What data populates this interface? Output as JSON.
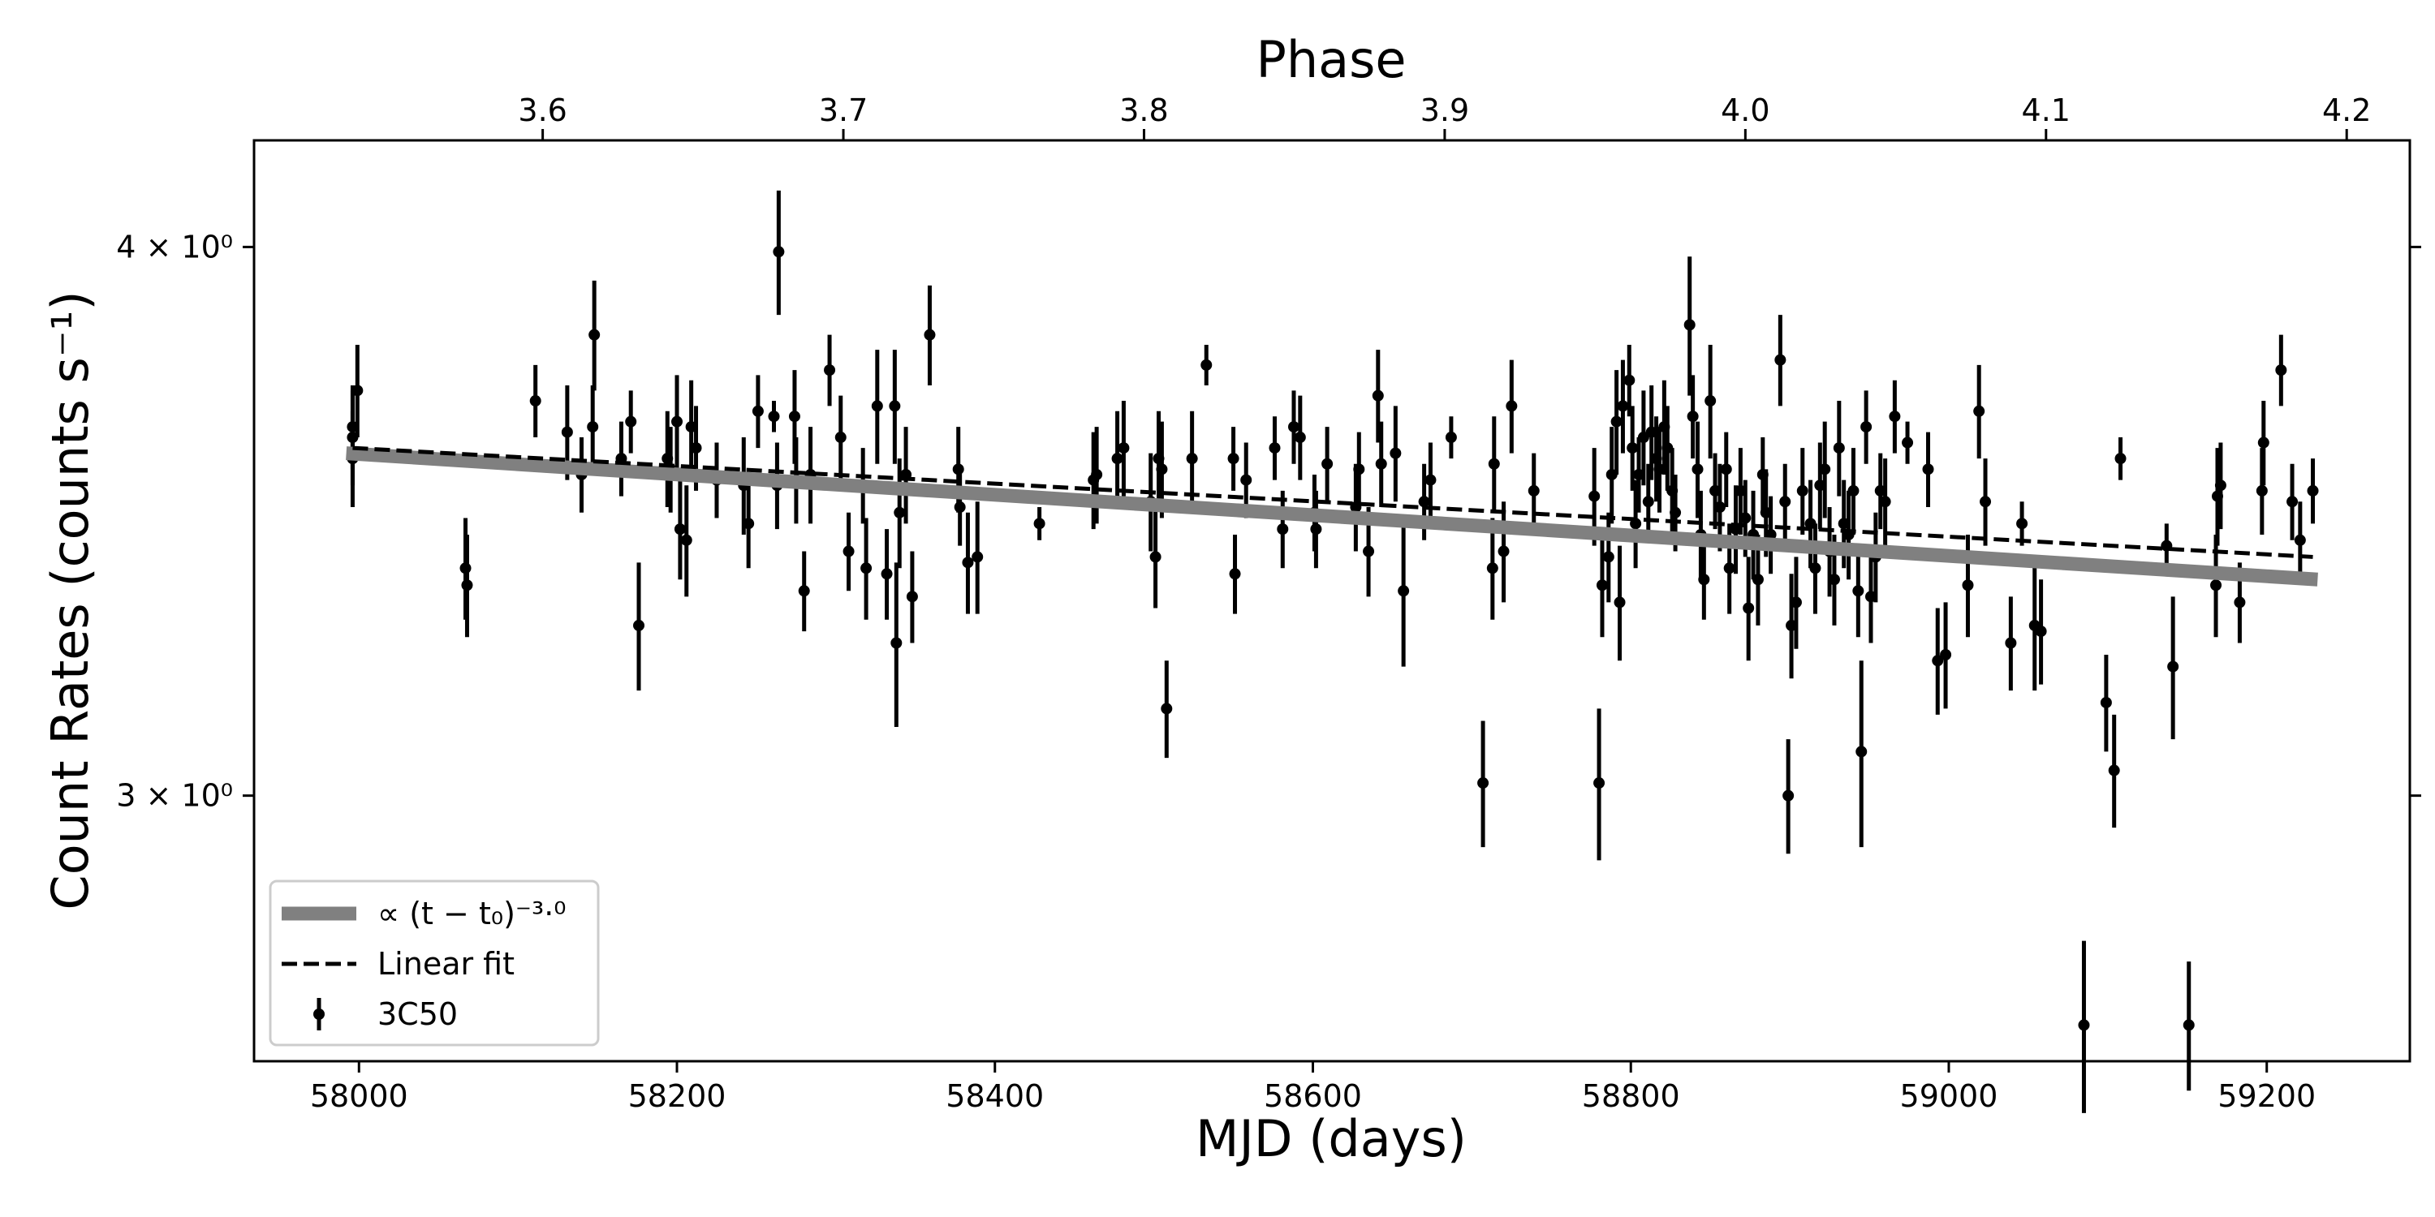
{
  "chart_data": {
    "type": "errorbar",
    "xlabel": "MJD (days)",
    "ylabel": "Count Rates (counts s⁻¹)",
    "x2label": "Phase",
    "xlim": [
      57934,
      59290
    ],
    "xticks": [
      58000,
      58200,
      58400,
      58600,
      58800,
      59000,
      59200
    ],
    "x2lim": [
      3.504,
      4.221
    ],
    "x2ticks": [
      3.6,
      3.7,
      3.8,
      3.9,
      {
        "value": 4,
        "label": "4.0"
      },
      4.1,
      4.2
    ],
    "ylim": [
      2.61,
      4.23
    ],
    "yscale": "log",
    "yticks": [
      {
        "value": 3,
        "label": "3 × 10⁰"
      },
      {
        "value": 4,
        "label": "4 × 10⁰"
      }
    ],
    "legend": "lower left",
    "series": [
      {
        "name": "∝ (t − t₀)⁻³·⁰",
        "type": "line",
        "color": "#808080",
        "x": [
          57992,
          59232
        ],
        "values": [
          3.59,
          3.36
        ]
      },
      {
        "name": "Linear fit",
        "type": "dashed",
        "color": "#000000",
        "x": [
          57996,
          59229
        ],
        "values": [
          3.6,
          3.4
        ]
      },
      {
        "name": "3C50",
        "type": "errorbar",
        "color": "#000000",
        "x": [
          57996,
          57996,
          57996,
          57999,
          58067,
          58068,
          58111,
          58131,
          58140,
          58147,
          58148,
          58165,
          58171,
          58176,
          58194,
          58196,
          58200,
          58202,
          58206,
          58209,
          58212,
          58225,
          58242,
          58245,
          58251,
          58261,
          58264,
          58263,
          58274,
          58275,
          58280,
          58284,
          58296,
          58303,
          58308,
          58317,
          58319,
          58326,
          58332,
          58337,
          58338,
          58340,
          58344,
          58348,
          58359,
          58378,
          58383,
          58389,
          58377,
          58428,
          58462,
          58464,
          58477,
          58481,
          58498,
          58501,
          58503,
          58505,
          58508,
          58524,
          58533,
          58550,
          58551,
          58558,
          58576,
          58581,
          58588,
          58592,
          58601,
          58602,
          58609,
          58627,
          58629,
          58635,
          58641,
          58643,
          58652,
          58657,
          58670,
          58674,
          58687,
          58707,
          58713,
          58714,
          58720,
          58725,
          58739,
          58777,
          58780,
          58782,
          58786,
          58788,
          58791,
          58793,
          58795,
          58799,
          58801,
          58803,
          58805,
          58808,
          58811,
          58813,
          58816,
          58818,
          58821,
          58823,
          58826,
          58828,
          58837,
          58839,
          58842,
          58844,
          58846,
          58850,
          58853,
          58856,
          58860,
          58862,
          58866,
          58869,
          58872,
          58874,
          58877,
          58880,
          58883,
          58885,
          58888,
          58894,
          58897,
          58899,
          58901,
          58904,
          58908,
          58913,
          58916,
          58919,
          58922,
          58925,
          58928,
          58931,
          58934,
          58937,
          58940,
          58943,
          58945,
          58948,
          58951,
          58954,
          58957,
          58960,
          58966,
          58974,
          58987,
          58993,
          58998,
          59012,
          59019,
          59023,
          59039,
          59046,
          59054,
          59058,
          59085,
          59099,
          59104,
          59108,
          59137,
          59141,
          59151,
          59168,
          59169,
          59171,
          59183,
          59197,
          59198,
          59209,
          59216,
          59221,
          59229
        ],
        "values": [
          3.58,
          3.62,
          3.64,
          3.71,
          3.38,
          3.35,
          3.69,
          3.63,
          3.55,
          3.64,
          3.82,
          3.58,
          3.65,
          3.28,
          3.58,
          3.56,
          3.65,
          3.45,
          3.43,
          3.64,
          3.6,
          3.54,
          3.53,
          3.46,
          3.67,
          3.66,
          3.99,
          3.53,
          3.66,
          3.54,
          3.34,
          3.55,
          3.75,
          3.62,
          3.41,
          3.53,
          3.38,
          3.68,
          3.37,
          3.68,
          3.25,
          3.48,
          3.55,
          3.33,
          3.82,
          3.49,
          3.39,
          3.4,
          3.56,
          3.46,
          3.54,
          3.55,
          3.58,
          3.6,
          3.5,
          3.4,
          3.58,
          3.56,
          3.14,
          3.58,
          3.76,
          3.58,
          3.37,
          3.54,
          3.6,
          3.45,
          3.64,
          3.62,
          3.48,
          3.45,
          3.57,
          3.49,
          3.56,
          3.41,
          3.7,
          3.57,
          3.59,
          3.34,
          3.5,
          3.54,
          3.62,
          3.02,
          3.38,
          3.57,
          3.41,
          3.68,
          3.52,
          3.51,
          3.02,
          3.35,
          3.4,
          3.55,
          3.65,
          3.32,
          3.68,
          3.73,
          3.6,
          3.46,
          3.55,
          3.62,
          3.5,
          3.63,
          3.58,
          3.56,
          3.64,
          3.6,
          3.52,
          3.48,
          3.84,
          3.66,
          3.56,
          3.44,
          3.36,
          3.69,
          3.52,
          3.49,
          3.56,
          3.38,
          3.45,
          3.52,
          3.47,
          3.31,
          3.44,
          3.36,
          3.55,
          3.48,
          3.44,
          3.77,
          3.5,
          3.0,
          3.28,
          3.32,
          3.52,
          3.46,
          3.38,
          3.53,
          3.56,
          3.41,
          3.36,
          3.6,
          3.46,
          3.44,
          3.52,
          3.34,
          3.07,
          3.64,
          3.33,
          3.4,
          3.52,
          3.5,
          3.66,
          3.61,
          3.56,
          3.22,
          3.23,
          3.35,
          3.67,
          3.5,
          3.25,
          3.46,
          3.28,
          3.27,
          2.66,
          3.15,
          3.04,
          3.58,
          3.42,
          3.21,
          2.66,
          3.35,
          3.51,
          3.53,
          3.32,
          3.52,
          3.61,
          3.75,
          3.5,
          3.43,
          3.52
        ],
        "errors": [
          0.09,
          0.09,
          0.08,
          0.09,
          0.09,
          0.09,
          0.07,
          0.09,
          0.07,
          0.08,
          0.11,
          0.07,
          0.06,
          0.11,
          0.09,
          0.08,
          0.09,
          0.09,
          0.1,
          0.09,
          0.08,
          0.07,
          0.09,
          0.08,
          0.07,
          0.03,
          0.13,
          0.08,
          0.09,
          0.08,
          0.07,
          0.09,
          0.07,
          0.08,
          0.07,
          0.07,
          0.09,
          0.11,
          0.08,
          0.11,
          0.14,
          0.1,
          0.09,
          0.08,
          0.1,
          0.07,
          0.09,
          0.1,
          0.08,
          0.03,
          0.09,
          0.09,
          0.09,
          0.09,
          0.09,
          0.09,
          0.09,
          0.09,
          0.08,
          0.09,
          0.04,
          0.06,
          0.07,
          0.07,
          0.06,
          0.07,
          0.07,
          0.08,
          0.07,
          0.07,
          0.07,
          0.08,
          0.07,
          0.08,
          0.09,
          0.08,
          0.09,
          0.13,
          0.07,
          0.07,
          0.04,
          0.1,
          0.09,
          0.09,
          0.09,
          0.09,
          0.07,
          0.09,
          0.12,
          0.09,
          0.08,
          0.09,
          0.1,
          0.1,
          0.09,
          0.07,
          0.08,
          0.08,
          0.07,
          0.09,
          0.07,
          0.09,
          0.08,
          0.08,
          0.09,
          0.08,
          0.08,
          0.07,
          0.14,
          0.08,
          0.09,
          0.08,
          0.07,
          0.11,
          0.07,
          0.08,
          0.07,
          0.08,
          0.08,
          0.08,
          0.07,
          0.09,
          0.08,
          0.08,
          0.07,
          0.08,
          0.07,
          0.09,
          0.07,
          0.09,
          0.09,
          0.08,
          0.08,
          0.08,
          0.08,
          0.08,
          0.09,
          0.08,
          0.08,
          0.09,
          0.08,
          0.08,
          0.08,
          0.08,
          0.15,
          0.07,
          0.08,
          0.08,
          0.07,
          0.08,
          0.07,
          0.04,
          0.07,
          0.09,
          0.09,
          0.09,
          0.09,
          0.08,
          0.08,
          0.04,
          0.11,
          0.09,
          0.12,
          0.08,
          0.09,
          0.04,
          0.04,
          0.12,
          0.09,
          0.09,
          0.09,
          0.08,
          0.07,
          0.08,
          0.08,
          0.07,
          0.07,
          0.07,
          0.06
        ]
      }
    ]
  }
}
